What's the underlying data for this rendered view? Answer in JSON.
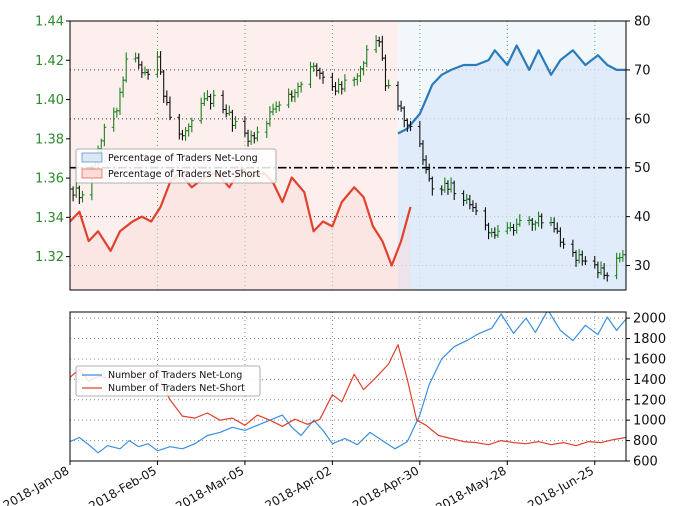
{
  "chart_data": [
    {
      "type": "line",
      "panel": "price-and-positioning",
      "x_type": "date",
      "x_tick_labels": [
        "2018-Jan-08",
        "2018-Feb-05",
        "2018-Mar-05",
        "2018-Apr-02",
        "2018-Apr-30",
        "2018-May-28",
        "2018-Jun-25"
      ],
      "x_range": [
        "2018-01-08",
        "2018-07-05"
      ],
      "left_axis": {
        "ticks": [
          "1.32",
          "1.34",
          "1.36",
          "1.38",
          "1.40",
          "1.42",
          "1.44"
        ],
        "range": [
          1.303,
          1.44
        ]
      },
      "right_axis": {
        "ticks": [
          "30",
          "40",
          "50",
          "60",
          "70",
          "80"
        ],
        "range": [
          25,
          80
        ]
      },
      "reference_line": {
        "value": 50,
        "axis": "right",
        "style": "dash-dot"
      },
      "grid": true,
      "legend": {
        "placement": "center-left",
        "entries": [
          "Percentage of Traders Net-Long",
          "Percentage of Traders Net-Short"
        ]
      },
      "series": [
        {
          "name": "Percentage of Traders Net-Long",
          "axis": "right",
          "color": "#2b7bba",
          "points": [
            [
              "2018-04-23",
              57
            ],
            [
              "2018-04-26",
              58
            ],
            [
              "2018-04-30",
              61
            ],
            [
              "2018-05-02",
              64
            ],
            [
              "2018-05-04",
              67
            ],
            [
              "2018-05-07",
              69
            ],
            [
              "2018-05-10",
              70
            ],
            [
              "2018-05-14",
              71
            ],
            [
              "2018-05-18",
              71
            ],
            [
              "2018-05-22",
              72
            ],
            [
              "2018-05-24",
              74
            ],
            [
              "2018-05-28",
              71
            ],
            [
              "2018-05-31",
              75
            ],
            [
              "2018-06-04",
              70
            ],
            [
              "2018-06-07",
              74
            ],
            [
              "2018-06-11",
              69
            ],
            [
              "2018-06-14",
              72
            ],
            [
              "2018-06-18",
              74
            ],
            [
              "2018-06-22",
              71
            ],
            [
              "2018-06-26",
              73
            ],
            [
              "2018-06-29",
              71
            ],
            [
              "2018-07-02",
              70
            ],
            [
              "2018-07-05",
              70
            ]
          ]
        },
        {
          "name": "Percentage of Traders Net-Short",
          "axis": "right",
          "color": "#e2412d",
          "points": [
            [
              "2018-01-08",
              39
            ],
            [
              "2018-01-11",
              41
            ],
            [
              "2018-01-14",
              35
            ],
            [
              "2018-01-17",
              37
            ],
            [
              "2018-01-21",
              33
            ],
            [
              "2018-01-24",
              37
            ],
            [
              "2018-01-28",
              39
            ],
            [
              "2018-01-31",
              40
            ],
            [
              "2018-02-03",
              39
            ],
            [
              "2018-02-06",
              42
            ],
            [
              "2018-02-09",
              47
            ],
            [
              "2018-02-12",
              49
            ],
            [
              "2018-02-16",
              46
            ],
            [
              "2018-02-20",
              48
            ],
            [
              "2018-02-24",
              49
            ],
            [
              "2018-02-28",
              46
            ],
            [
              "2018-03-04",
              50
            ],
            [
              "2018-03-07",
              48
            ],
            [
              "2018-03-11",
              49
            ],
            [
              "2018-03-14",
              47
            ],
            [
              "2018-03-17",
              43
            ],
            [
              "2018-03-20",
              48
            ],
            [
              "2018-03-24",
              45
            ],
            [
              "2018-03-27",
              37
            ],
            [
              "2018-03-30",
              39
            ],
            [
              "2018-04-02",
              38
            ],
            [
              "2018-04-05",
              43
            ],
            [
              "2018-04-09",
              46
            ],
            [
              "2018-04-12",
              44
            ],
            [
              "2018-04-15",
              38
            ],
            [
              "2018-04-18",
              35
            ],
            [
              "2018-04-21",
              30
            ],
            [
              "2018-04-24",
              35
            ],
            [
              "2018-04-27",
              42
            ]
          ]
        }
      ],
      "price_series": {
        "axis": "left",
        "style": "ohlc",
        "color_up": "#1f7f1f",
        "color_down": "#111111",
        "close_points": [
          [
            "2018-01-08",
            1.354
          ],
          [
            "2018-01-12",
            1.352
          ],
          [
            "2018-01-16",
            1.371
          ],
          [
            "2018-01-19",
            1.387
          ],
          [
            "2018-01-23",
            1.396
          ],
          [
            "2018-01-26",
            1.418
          ],
          [
            "2018-01-29",
            1.42
          ],
          [
            "2018-02-01",
            1.412
          ],
          [
            "2018-02-05",
            1.42
          ],
          [
            "2018-02-09",
            1.389
          ],
          [
            "2018-02-13",
            1.382
          ],
          [
            "2018-02-16",
            1.391
          ],
          [
            "2018-02-20",
            1.398
          ],
          [
            "2018-02-23",
            1.401
          ],
          [
            "2018-02-27",
            1.392
          ],
          [
            "2018-03-02",
            1.388
          ],
          [
            "2018-03-06",
            1.38
          ],
          [
            "2018-03-09",
            1.382
          ],
          [
            "2018-03-13",
            1.392
          ],
          [
            "2018-03-16",
            1.398
          ],
          [
            "2018-03-20",
            1.402
          ],
          [
            "2018-03-23",
            1.41
          ],
          [
            "2018-03-27",
            1.418
          ],
          [
            "2018-03-30",
            1.414
          ],
          [
            "2018-04-03",
            1.404
          ],
          [
            "2018-04-06",
            1.408
          ],
          [
            "2018-04-10",
            1.414
          ],
          [
            "2018-04-13",
            1.425
          ],
          [
            "2018-04-17",
            1.43
          ],
          [
            "2018-04-19",
            1.408
          ],
          [
            "2018-04-23",
            1.397
          ],
          [
            "2018-04-26",
            1.39
          ],
          [
            "2018-04-30",
            1.376
          ],
          [
            "2018-05-03",
            1.358
          ],
          [
            "2018-05-07",
            1.355
          ],
          [
            "2018-05-10",
            1.356
          ],
          [
            "2018-05-14",
            1.35
          ],
          [
            "2018-05-17",
            1.345
          ],
          [
            "2018-05-21",
            1.337
          ],
          [
            "2018-05-24",
            1.33
          ],
          [
            "2018-05-28",
            1.333
          ],
          [
            "2018-05-31",
            1.335
          ],
          [
            "2018-06-04",
            1.339
          ],
          [
            "2018-06-07",
            1.34
          ],
          [
            "2018-06-11",
            1.336
          ],
          [
            "2018-06-14",
            1.328
          ],
          [
            "2018-06-18",
            1.322
          ],
          [
            "2018-06-21",
            1.318
          ],
          [
            "2018-06-25",
            1.315
          ],
          [
            "2018-06-28",
            1.31
          ],
          [
            "2018-07-02",
            1.318
          ],
          [
            "2018-07-05",
            1.322
          ]
        ]
      }
    },
    {
      "type": "line",
      "panel": "trader-counts",
      "x_type": "date",
      "x_tick_labels": [
        "2018-Jan-08",
        "2018-Feb-05",
        "2018-Mar-05",
        "2018-Apr-02",
        "2018-Apr-30",
        "2018-May-28",
        "2018-Jun-25"
      ],
      "x_range": [
        "2018-01-08",
        "2018-07-05"
      ],
      "right_axis": {
        "ticks": [
          "600",
          "800",
          "1000",
          "1200",
          "1400",
          "1600",
          "1800",
          "2000"
        ],
        "range": [
          600,
          2060
        ]
      },
      "grid": true,
      "legend": {
        "placement": "upper-left",
        "entries": [
          "Number of Traders Net-Long",
          "Number of Traders Net-Short"
        ]
      },
      "series": [
        {
          "name": "Number of Traders Net-Long",
          "color": "#3a8fe0",
          "points": [
            [
              "2018-01-08",
              790
            ],
            [
              "2018-01-11",
              830
            ],
            [
              "2018-01-14",
              760
            ],
            [
              "2018-01-17",
              680
            ],
            [
              "2018-01-20",
              750
            ],
            [
              "2018-01-24",
              720
            ],
            [
              "2018-01-27",
              800
            ],
            [
              "2018-01-30",
              740
            ],
            [
              "2018-02-02",
              770
            ],
            [
              "2018-02-05",
              700
            ],
            [
              "2018-02-09",
              740
            ],
            [
              "2018-02-13",
              720
            ],
            [
              "2018-02-17",
              770
            ],
            [
              "2018-02-21",
              850
            ],
            [
              "2018-02-25",
              880
            ],
            [
              "2018-03-01",
              930
            ],
            [
              "2018-03-05",
              900
            ],
            [
              "2018-03-09",
              950
            ],
            [
              "2018-03-13",
              1000
            ],
            [
              "2018-03-17",
              1050
            ],
            [
              "2018-03-20",
              930
            ],
            [
              "2018-03-23",
              850
            ],
            [
              "2018-03-27",
              1000
            ],
            [
              "2018-03-30",
              900
            ],
            [
              "2018-04-02",
              770
            ],
            [
              "2018-04-06",
              820
            ],
            [
              "2018-04-10",
              760
            ],
            [
              "2018-04-14",
              880
            ],
            [
              "2018-04-18",
              800
            ],
            [
              "2018-04-22",
              720
            ],
            [
              "2018-04-26",
              790
            ],
            [
              "2018-04-30",
              1050
            ],
            [
              "2018-05-03",
              1350
            ],
            [
              "2018-05-07",
              1600
            ],
            [
              "2018-05-11",
              1720
            ],
            [
              "2018-05-15",
              1780
            ],
            [
              "2018-05-19",
              1850
            ],
            [
              "2018-05-23",
              1900
            ],
            [
              "2018-05-26",
              2040
            ],
            [
              "2018-05-30",
              1850
            ],
            [
              "2018-06-03",
              2000
            ],
            [
              "2018-06-06",
              1860
            ],
            [
              "2018-06-10",
              2080
            ],
            [
              "2018-06-14",
              1880
            ],
            [
              "2018-06-18",
              1780
            ],
            [
              "2018-06-22",
              1930
            ],
            [
              "2018-06-26",
              1840
            ],
            [
              "2018-06-29",
              2010
            ],
            [
              "2018-07-02",
              1880
            ],
            [
              "2018-07-05",
              1990
            ]
          ]
        },
        {
          "name": "Number of Traders Net-Short",
          "color": "#e2412d",
          "points": [
            [
              "2018-01-08",
              1420
            ],
            [
              "2018-01-11",
              1500
            ],
            [
              "2018-01-14",
              1380
            ],
            [
              "2018-01-17",
              1430
            ],
            [
              "2018-01-21",
              1410
            ],
            [
              "2018-01-25",
              1460
            ],
            [
              "2018-01-29",
              1420
            ],
            [
              "2018-02-02",
              1390
            ],
            [
              "2018-02-05",
              1440
            ],
            [
              "2018-02-09",
              1200
            ],
            [
              "2018-02-13",
              1040
            ],
            [
              "2018-02-17",
              1020
            ],
            [
              "2018-02-21",
              1070
            ],
            [
              "2018-02-25",
              1000
            ],
            [
              "2018-03-01",
              1020
            ],
            [
              "2018-03-05",
              950
            ],
            [
              "2018-03-09",
              1050
            ],
            [
              "2018-03-13",
              1000
            ],
            [
              "2018-03-17",
              940
            ],
            [
              "2018-03-21",
              1010
            ],
            [
              "2018-03-25",
              960
            ],
            [
              "2018-03-29",
              1010
            ],
            [
              "2018-04-02",
              1250
            ],
            [
              "2018-04-05",
              1180
            ],
            [
              "2018-04-09",
              1450
            ],
            [
              "2018-04-12",
              1300
            ],
            [
              "2018-04-16",
              1420
            ],
            [
              "2018-04-20",
              1550
            ],
            [
              "2018-04-23",
              1740
            ],
            [
              "2018-04-26",
              1400
            ],
            [
              "2018-04-29",
              1000
            ],
            [
              "2018-05-02",
              950
            ],
            [
              "2018-05-06",
              850
            ],
            [
              "2018-05-10",
              820
            ],
            [
              "2018-05-14",
              790
            ],
            [
              "2018-05-18",
              780
            ],
            [
              "2018-05-22",
              760
            ],
            [
              "2018-05-26",
              800
            ],
            [
              "2018-05-30",
              780
            ],
            [
              "2018-06-03",
              770
            ],
            [
              "2018-06-07",
              790
            ],
            [
              "2018-06-11",
              760
            ],
            [
              "2018-06-15",
              780
            ],
            [
              "2018-06-19",
              750
            ],
            [
              "2018-06-23",
              790
            ],
            [
              "2018-06-27",
              780
            ],
            [
              "2018-07-01",
              810
            ],
            [
              "2018-07-05",
              830
            ]
          ]
        }
      ]
    }
  ],
  "colors": {
    "long_line": "#2b7bba",
    "long_fill": "#dbe9f7",
    "short_line": "#e2412d",
    "short_fill": "#fbdcd8",
    "count_long": "#3a8fe0",
    "count_short": "#e2412d",
    "grid_vertical": "#5aa95a",
    "grid_horizontal": "#333333"
  }
}
